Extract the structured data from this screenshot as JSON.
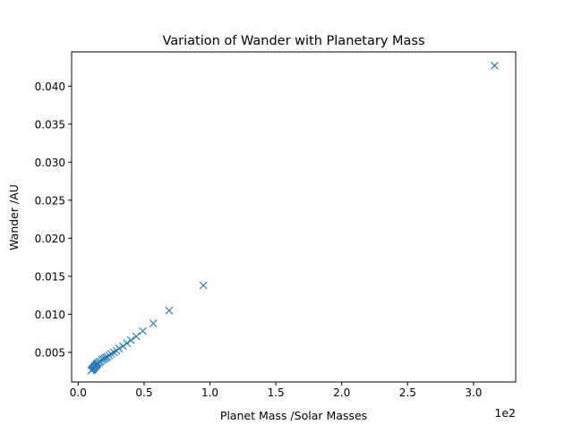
{
  "chart_data": {
    "type": "scatter",
    "title": "Variation of Wander with Planetary Mass",
    "xlabel": "Planet Mass /Solar Masses",
    "ylabel": "Wander /AU",
    "x_offset_text": "1e2",
    "xlim": [
      -0.05,
      3.32
    ],
    "ylim": [
      0.0011,
      0.0445
    ],
    "x_ticks": [
      0.0,
      0.5,
      1.0,
      1.5,
      2.0,
      2.5,
      3.0
    ],
    "x_tick_labels": [
      "0.0",
      "0.5",
      "1.0",
      "1.5",
      "2.0",
      "2.5",
      "3.0"
    ],
    "y_ticks": [
      0.005,
      0.01,
      0.015,
      0.02,
      0.025,
      0.03,
      0.035,
      0.04
    ],
    "y_tick_labels": [
      "0.005",
      "0.010",
      "0.015",
      "0.020",
      "0.025",
      "0.030",
      "0.035",
      "0.040"
    ],
    "grid": false,
    "marker": "x",
    "marker_color": "#1f77b4",
    "series": [
      {
        "points": [
          [
            0.1,
            0.0026
          ],
          [
            0.105,
            0.0027
          ],
          [
            0.11,
            0.0028
          ],
          [
            0.115,
            0.0029
          ],
          [
            0.12,
            0.003
          ],
          [
            0.125,
            0.0031
          ],
          [
            0.13,
            0.0032
          ],
          [
            0.135,
            0.0033
          ],
          [
            0.14,
            0.0034
          ],
          [
            0.145,
            0.0035
          ],
          [
            0.15,
            0.0036
          ],
          [
            0.16,
            0.0037
          ],
          [
            0.17,
            0.0038
          ],
          [
            0.18,
            0.004
          ],
          [
            0.19,
            0.0041
          ],
          [
            0.2,
            0.0042
          ],
          [
            0.21,
            0.0043
          ],
          [
            0.22,
            0.0044
          ],
          [
            0.235,
            0.0046
          ],
          [
            0.25,
            0.0048
          ],
          [
            0.27,
            0.005
          ],
          [
            0.29,
            0.0052
          ],
          [
            0.31,
            0.0055
          ],
          [
            0.34,
            0.0058
          ],
          [
            0.37,
            0.0062
          ],
          [
            0.4,
            0.0066
          ],
          [
            0.44,
            0.0071
          ],
          [
            0.49,
            0.0078
          ],
          [
            0.57,
            0.0088
          ],
          [
            0.69,
            0.0105
          ],
          [
            0.95,
            0.0138
          ],
          [
            3.16,
            0.0427
          ]
        ]
      }
    ]
  }
}
